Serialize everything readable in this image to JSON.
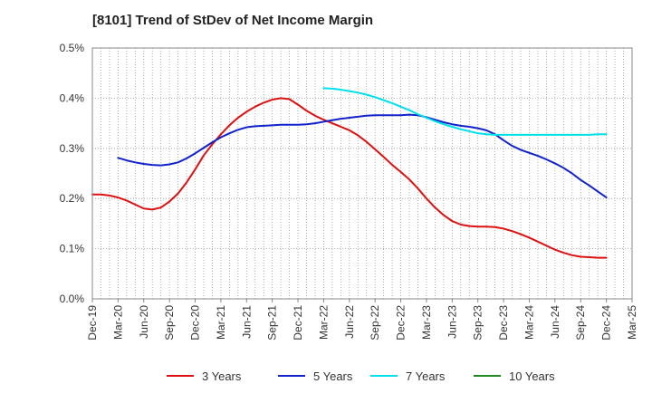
{
  "chart_data": {
    "type": "line",
    "title": "[8101]  Trend of StDev of Net Income Margin",
    "xlabel": "",
    "ylabel": "",
    "x_tick_labels": [
      "Dec-19",
      "Mar-20",
      "Jun-20",
      "Sep-20",
      "Dec-20",
      "Mar-21",
      "Jun-21",
      "Sep-21",
      "Dec-21",
      "Mar-22",
      "Jun-22",
      "Sep-22",
      "Dec-22",
      "Mar-23",
      "Jun-23",
      "Sep-23",
      "Dec-23",
      "Mar-24",
      "Jun-24",
      "Sep-24",
      "Dec-24",
      "Mar-25"
    ],
    "y_tick_labels": [
      "0.0%",
      "0.1%",
      "0.2%",
      "0.3%",
      "0.4%",
      "0.5%"
    ],
    "ylim": [
      0,
      0.5
    ],
    "y_unit": "%",
    "grid": true,
    "legend_position": "bottom",
    "series": [
      {
        "name": "3 Years",
        "color": "#dd1111",
        "x": [
          "Dec-19",
          "Jan-20",
          "Feb-20",
          "Mar-20",
          "Apr-20",
          "May-20",
          "Jun-20",
          "Jul-20",
          "Aug-20",
          "Sep-20",
          "Oct-20",
          "Nov-20",
          "Dec-20",
          "Jan-21",
          "Feb-21",
          "Mar-21",
          "Apr-21",
          "May-21",
          "Jun-21",
          "Jul-21",
          "Aug-21",
          "Sep-21",
          "Oct-21",
          "Nov-21",
          "Dec-21",
          "Jan-22",
          "Feb-22",
          "Mar-22",
          "Apr-22",
          "May-22",
          "Jun-22",
          "Jul-22",
          "Aug-22",
          "Sep-22",
          "Oct-22",
          "Nov-22",
          "Dec-22",
          "Jan-23",
          "Feb-23",
          "Mar-23",
          "Apr-23",
          "May-23",
          "Jun-23",
          "Jul-23",
          "Aug-23",
          "Sep-23",
          "Oct-23",
          "Nov-23",
          "Dec-23",
          "Jan-24",
          "Feb-24",
          "Mar-24",
          "Apr-24",
          "May-24",
          "Jun-24",
          "Jul-24",
          "Aug-24",
          "Sep-24",
          "Oct-24",
          "Nov-24",
          "Dec-24"
        ],
        "values": [
          0.208,
          0.208,
          0.206,
          0.202,
          0.196,
          0.188,
          0.18,
          0.178,
          0.182,
          0.194,
          0.21,
          0.232,
          0.258,
          0.286,
          0.308,
          0.328,
          0.346,
          0.361,
          0.373,
          0.383,
          0.391,
          0.397,
          0.4,
          0.398,
          0.387,
          0.375,
          0.365,
          0.357,
          0.35,
          0.343,
          0.336,
          0.326,
          0.313,
          0.298,
          0.283,
          0.267,
          0.253,
          0.238,
          0.22,
          0.2,
          0.182,
          0.167,
          0.155,
          0.148,
          0.145,
          0.144,
          0.144,
          0.143,
          0.14,
          0.135,
          0.129,
          0.122,
          0.114,
          0.106,
          0.098,
          0.092,
          0.087,
          0.084,
          0.083,
          0.082,
          0.082
        ]
      },
      {
        "name": "5 Years",
        "color": "#1122cc",
        "x": [
          "Mar-20",
          "Apr-20",
          "May-20",
          "Jun-20",
          "Jul-20",
          "Aug-20",
          "Sep-20",
          "Oct-20",
          "Nov-20",
          "Dec-20",
          "Jan-21",
          "Feb-21",
          "Mar-21",
          "Apr-21",
          "May-21",
          "Jun-21",
          "Jul-21",
          "Aug-21",
          "Sep-21",
          "Oct-21",
          "Nov-21",
          "Dec-21",
          "Jan-22",
          "Feb-22",
          "Mar-22",
          "Apr-22",
          "May-22",
          "Jun-22",
          "Jul-22",
          "Aug-22",
          "Sep-22",
          "Oct-22",
          "Nov-22",
          "Dec-22",
          "Jan-23",
          "Feb-23",
          "Mar-23",
          "Apr-23",
          "May-23",
          "Jun-23",
          "Jul-23",
          "Aug-23",
          "Sep-23",
          "Oct-23",
          "Nov-23",
          "Dec-23",
          "Jan-24",
          "Feb-24",
          "Mar-24",
          "Apr-24",
          "May-24",
          "Jun-24",
          "Jul-24",
          "Aug-24",
          "Sep-24",
          "Oct-24",
          "Nov-24",
          "Dec-24"
        ],
        "values": [
          0.281,
          0.276,
          0.272,
          0.269,
          0.267,
          0.266,
          0.268,
          0.272,
          0.28,
          0.29,
          0.301,
          0.312,
          0.322,
          0.33,
          0.337,
          0.342,
          0.344,
          0.345,
          0.346,
          0.347,
          0.347,
          0.347,
          0.348,
          0.35,
          0.353,
          0.356,
          0.359,
          0.361,
          0.363,
          0.365,
          0.366,
          0.366,
          0.366,
          0.366,
          0.367,
          0.366,
          0.362,
          0.357,
          0.352,
          0.348,
          0.345,
          0.343,
          0.34,
          0.336,
          0.328,
          0.316,
          0.305,
          0.297,
          0.291,
          0.285,
          0.278,
          0.27,
          0.261,
          0.25,
          0.237,
          0.226,
          0.214,
          0.202
        ]
      },
      {
        "name": "7 Years",
        "color": "#00e0e8",
        "x": [
          "Mar-22",
          "Apr-22",
          "May-22",
          "Jun-22",
          "Jul-22",
          "Aug-22",
          "Sep-22",
          "Oct-22",
          "Nov-22",
          "Dec-22",
          "Jan-23",
          "Feb-23",
          "Mar-23",
          "Apr-23",
          "May-23",
          "Jun-23",
          "Jul-23",
          "Aug-23",
          "Sep-23",
          "Oct-23",
          "Nov-23",
          "Dec-23",
          "Jan-24",
          "Feb-24",
          "Mar-24",
          "Apr-24",
          "May-24",
          "Jun-24",
          "Jul-24",
          "Aug-24",
          "Sep-24",
          "Oct-24",
          "Nov-24",
          "Dec-24"
        ],
        "values": [
          0.42,
          0.419,
          0.417,
          0.414,
          0.411,
          0.407,
          0.402,
          0.396,
          0.39,
          0.383,
          0.376,
          0.368,
          0.361,
          0.354,
          0.348,
          0.343,
          0.338,
          0.334,
          0.33,
          0.328,
          0.327,
          0.327,
          0.327,
          0.327,
          0.327,
          0.327,
          0.327,
          0.327,
          0.327,
          0.327,
          0.327,
          0.327,
          0.328,
          0.328
        ]
      },
      {
        "name": "10 Years",
        "color": "#228822",
        "x": [],
        "values": []
      }
    ]
  }
}
